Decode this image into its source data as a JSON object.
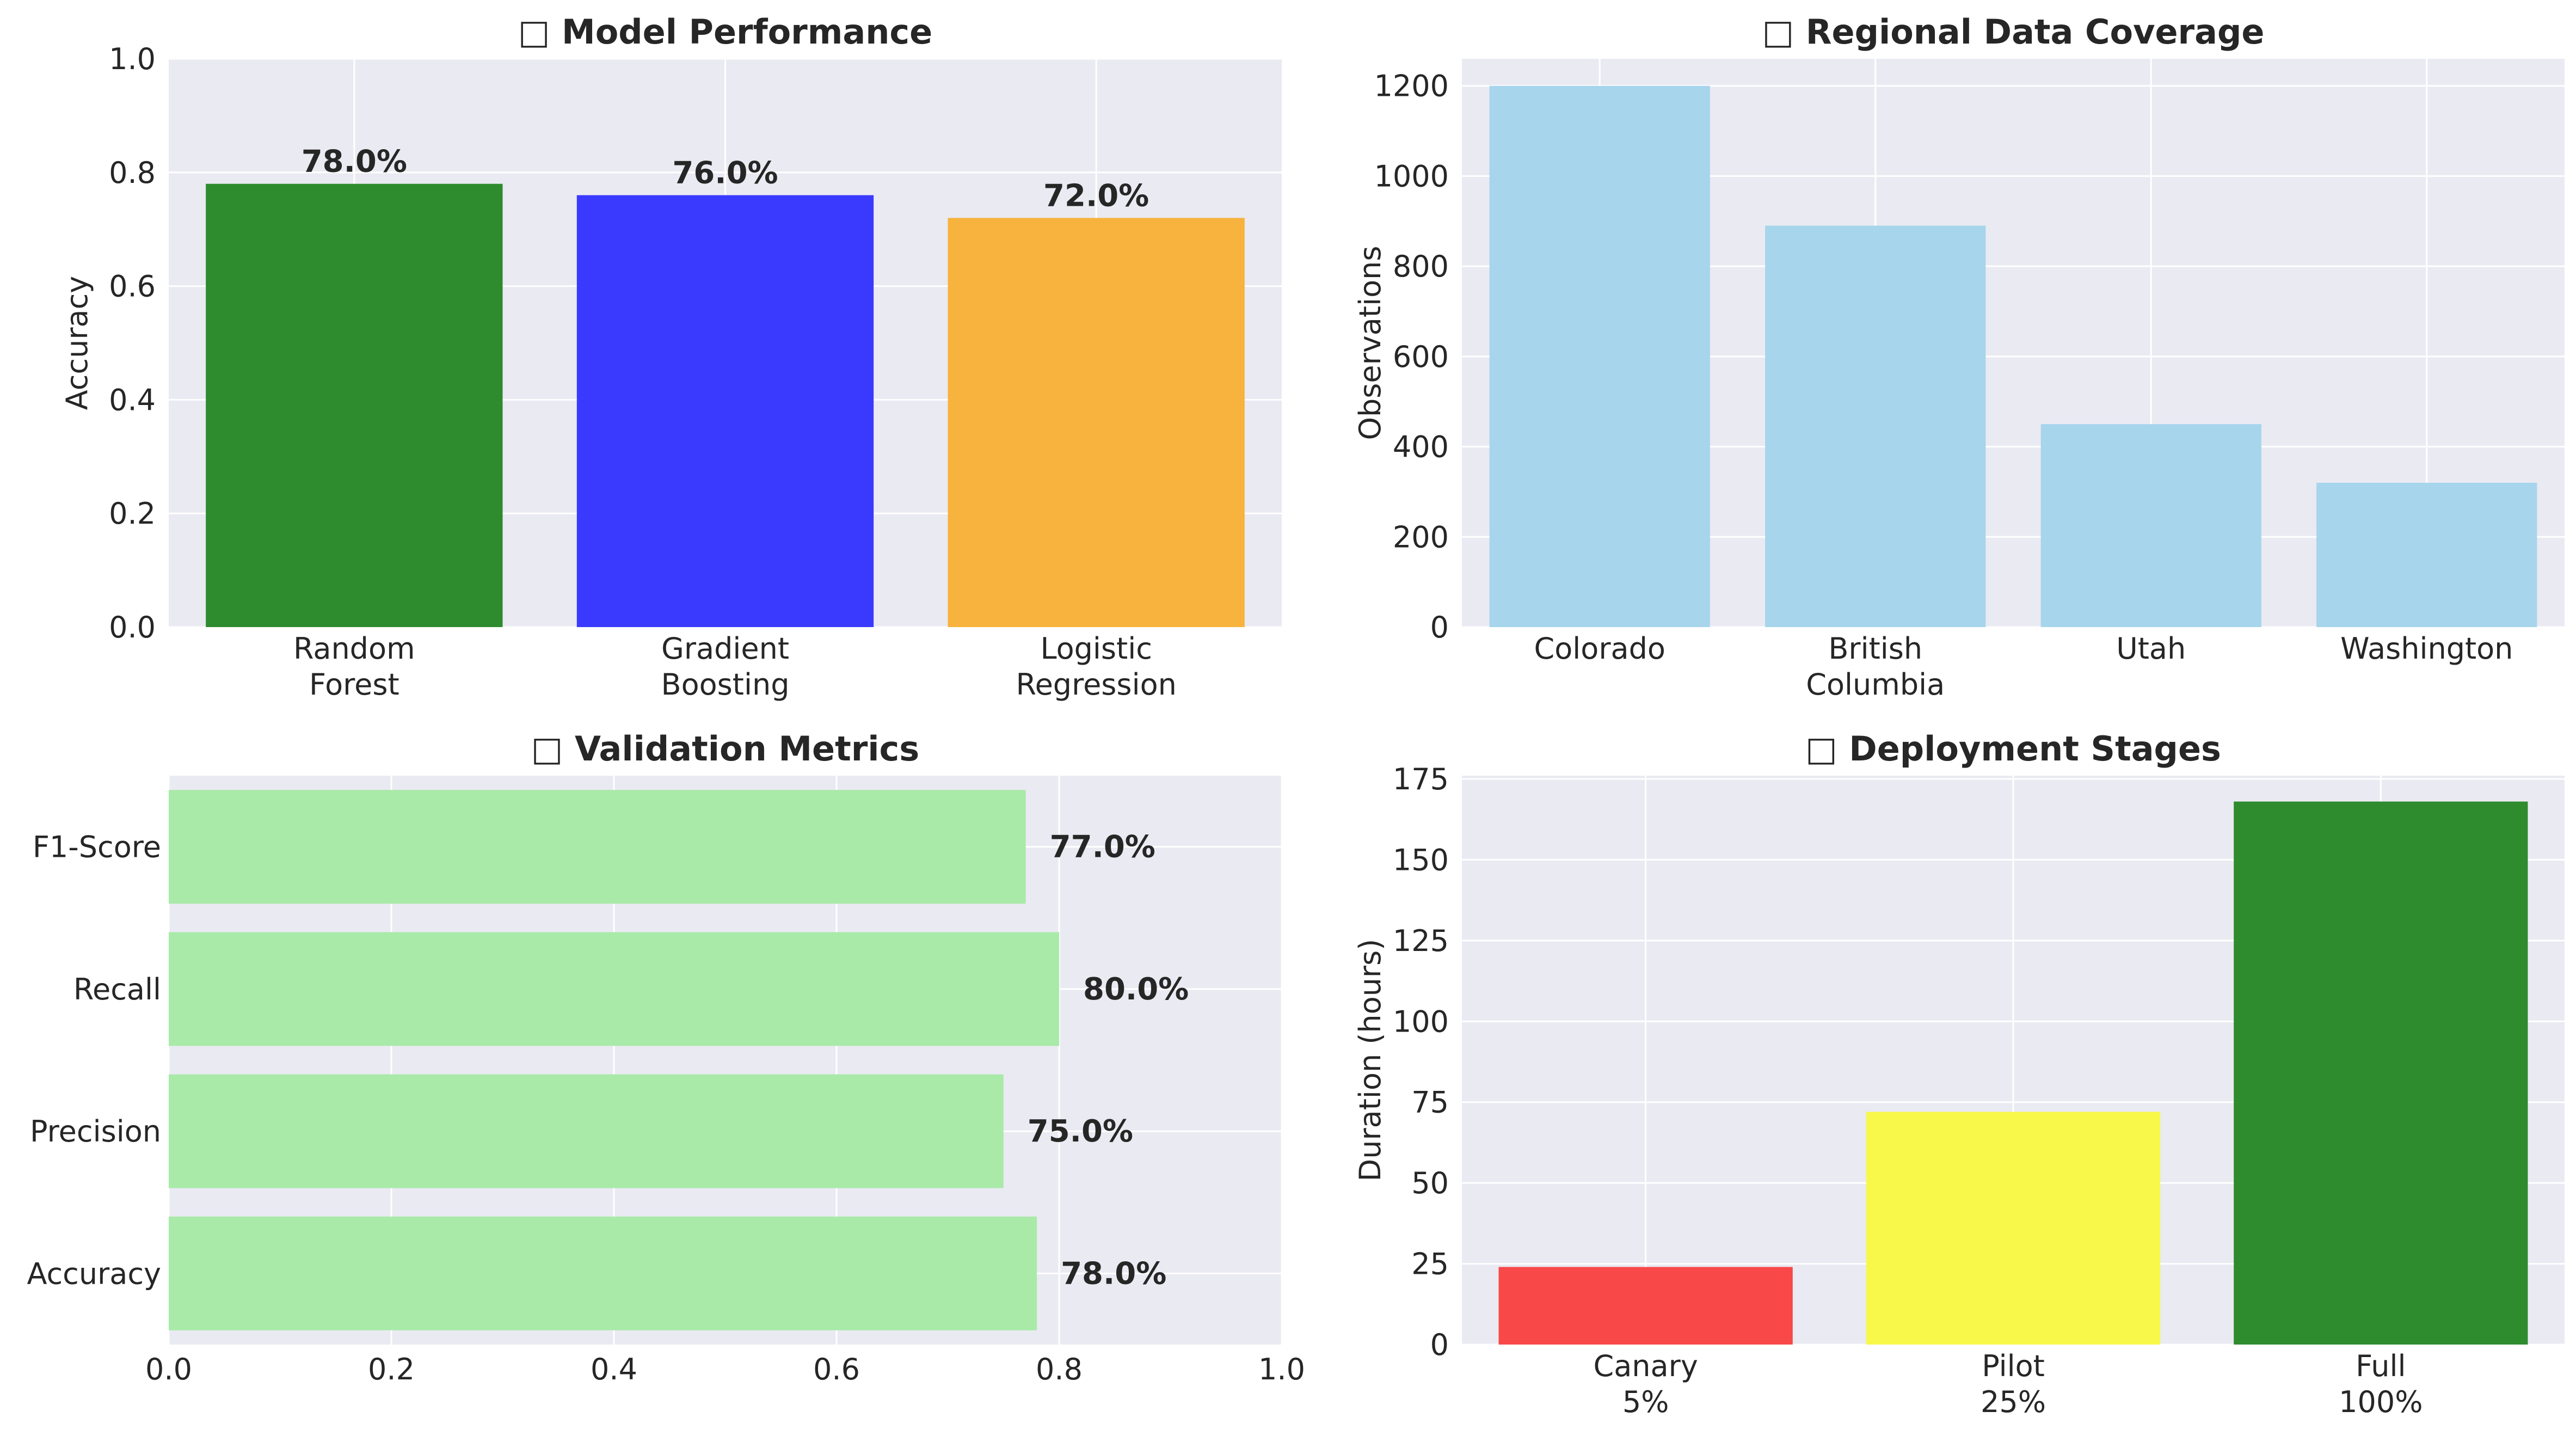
{
  "chart_data": [
    {
      "type": "bar",
      "title": "□ Model Performance",
      "categories": [
        "Random\nForest",
        "Gradient\nBoosting",
        "Logistic\nRegression"
      ],
      "values": [
        0.78,
        0.76,
        0.72
      ],
      "value_labels": [
        "78.0%",
        "76.0%",
        "72.0%"
      ],
      "colors": [
        "#2e8b2e",
        "#3a3aff",
        "#f7b33d"
      ],
      "ylabel": "Accuracy",
      "xlabel": "",
      "ylim": [
        0,
        1.0
      ],
      "yticks": [
        "0.0",
        "0.2",
        "0.4",
        "0.6",
        "0.8",
        "1.0"
      ],
      "grid": true
    },
    {
      "type": "bar",
      "title": "□ Regional Data Coverage",
      "categories": [
        "Colorado",
        "British\nColumbia",
        "Utah",
        "Washington"
      ],
      "values": [
        1200,
        890,
        450,
        320
      ],
      "colors": [
        "#a6d5ec",
        "#a6d5ec",
        "#a6d5ec",
        "#a6d5ec"
      ],
      "ylabel": "Observations",
      "xlabel": "",
      "ylim": [
        0,
        1260
      ],
      "yticks": [
        "0",
        "200",
        "400",
        "600",
        "800",
        "1000",
        "1200"
      ],
      "grid": true
    },
    {
      "type": "bar",
      "orientation": "horizontal",
      "title": "□ Validation Metrics",
      "categories": [
        "Accuracy",
        "Precision",
        "Recall",
        "F1-Score"
      ],
      "values": [
        0.78,
        0.75,
        0.8,
        0.77
      ],
      "value_labels": [
        "78.0%",
        "75.0%",
        "80.0%",
        "77.0%"
      ],
      "colors": [
        "#a9eaa9",
        "#a9eaa9",
        "#a9eaa9",
        "#a9eaa9"
      ],
      "xlabel": "",
      "ylabel": "",
      "xlim": [
        0,
        1.0
      ],
      "xticks": [
        "0.0",
        "0.2",
        "0.4",
        "0.6",
        "0.8",
        "1.0"
      ],
      "grid": true
    },
    {
      "type": "bar",
      "title": "□ Deployment Stages",
      "categories": [
        "Canary\n5%",
        "Pilot\n25%",
        "Full\n100%"
      ],
      "values": [
        24,
        72,
        168
      ],
      "colors": [
        "#f84848",
        "#f8f84a",
        "#2e8b2e"
      ],
      "ylabel": "Duration (hours)",
      "xlabel": "",
      "ylim": [
        0,
        176
      ],
      "yticks": [
        "0",
        "25",
        "50",
        "75",
        "100",
        "125",
        "150",
        "175"
      ],
      "grid": true
    }
  ]
}
